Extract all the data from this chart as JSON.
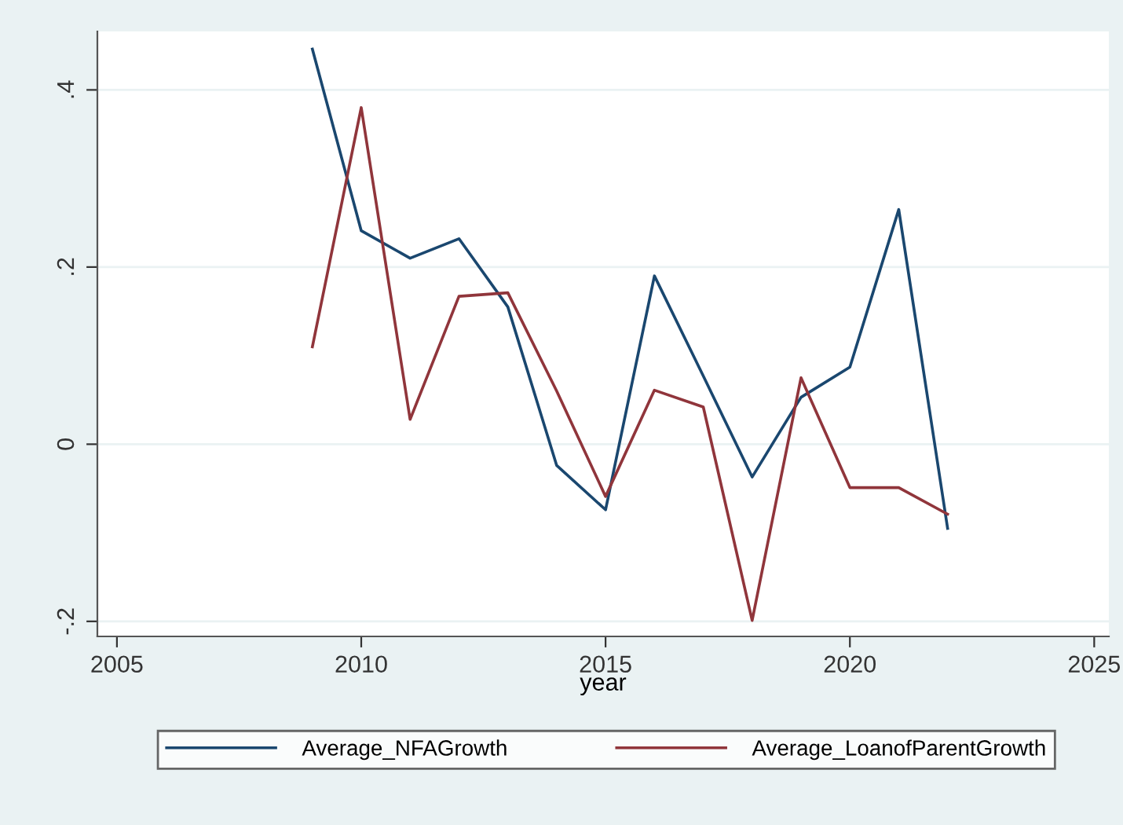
{
  "chart_data": {
    "type": "line",
    "xlabel": "year",
    "x": [
      2009,
      2010,
      2011,
      2012,
      2013,
      2014,
      2015,
      2016,
      2017,
      2018,
      2019,
      2020,
      2021,
      2022
    ],
    "series": [
      {
        "name": "Average_NFAGrowth",
        "color": "#1a476f",
        "values": [
          0.446,
          0.241,
          0.21,
          0.232,
          0.155,
          -0.024,
          -0.074,
          0.19,
          0.077,
          -0.037,
          0.053,
          0.087,
          0.265,
          -0.095
        ]
      },
      {
        "name": "Average_LoanofParentGrowth",
        "color": "#90353b",
        "values": [
          0.11,
          0.38,
          0.028,
          0.167,
          0.171,
          0.06,
          -0.059,
          0.061,
          0.042,
          -0.199,
          0.075,
          -0.049,
          -0.049,
          -0.079
        ]
      }
    ],
    "xlim": [
      2004.6,
      2025.3
    ],
    "xticks": [
      2005,
      2010,
      2015,
      2020,
      2025
    ],
    "ylim": [
      -0.217,
      0.466
    ],
    "yticks": [
      {
        "value": -0.2,
        "label": "-.2"
      },
      {
        "value": 0,
        "label": "0"
      },
      {
        "value": 0.2,
        "label": ".2"
      },
      {
        "value": 0.4,
        "label": ".4"
      }
    ],
    "grid": "y",
    "legend": "bottom",
    "marker": "none",
    "line_style": "solid"
  }
}
